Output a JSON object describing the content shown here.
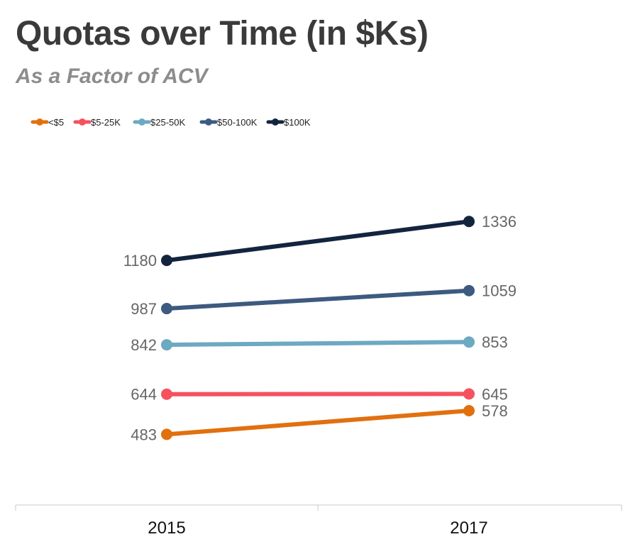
{
  "chart_data": {
    "type": "line",
    "title": "Quotas over Time (in $Ks)",
    "subtitle": "As a Factor of ACV",
    "x": [
      "2015",
      "2017"
    ],
    "legend_position": "top-left",
    "grid": false,
    "series": [
      {
        "name": "<$5",
        "color": "#e1700f",
        "values": [
          483,
          578
        ],
        "labels": [
          "483",
          "578"
        ]
      },
      {
        "name": "$5-25K",
        "color": "#f5515f",
        "values": [
          644,
          645
        ],
        "labels": [
          "644",
          "645"
        ]
      },
      {
        "name": "$25-50K",
        "color": "#6ca9c2",
        "values": [
          842,
          853
        ],
        "labels": [
          "842",
          "853"
        ]
      },
      {
        "name": "$50-100K",
        "color": "#3d5a80",
        "values": [
          987,
          1059
        ],
        "labels": [
          "987",
          "1059"
        ]
      },
      {
        "name": "$100K",
        "color": "#13243f",
        "values": [
          1180,
          1336
        ],
        "labels": [
          "1180",
          "1336"
        ]
      }
    ]
  }
}
